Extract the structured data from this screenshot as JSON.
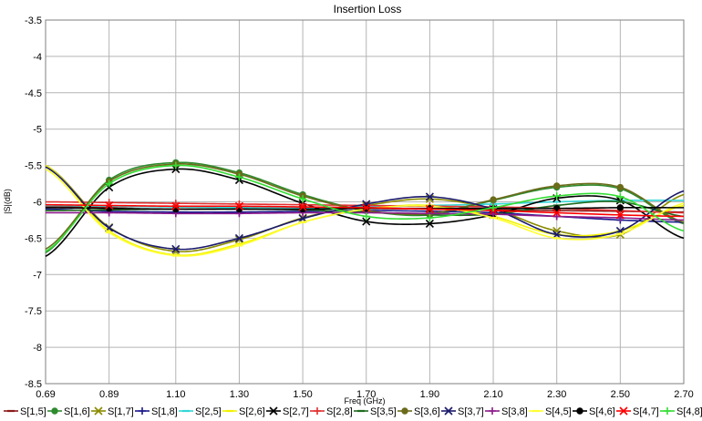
{
  "chart_data": {
    "type": "line",
    "title": "Insertion Loss",
    "xlabel": "Freq (GHz)",
    "ylabel": "|S|(dB)",
    "xlim": [
      0.69,
      2.7
    ],
    "ylim": [
      -8.5,
      -3.5
    ],
    "x_ticks": [
      0.69,
      0.89,
      1.1,
      1.3,
      1.5,
      1.7,
      1.9,
      2.1,
      2.3,
      2.5,
      2.7
    ],
    "x_tick_labels": [
      "0.69",
      "0.89",
      "1.10",
      "1.30",
      "1.50",
      "1.70",
      "1.90",
      "2.10",
      "2.30",
      "2.50",
      "2.70"
    ],
    "y_ticks": [
      -3.5,
      -4,
      -4.5,
      -5,
      -5.5,
      -6,
      -6.5,
      -7,
      -7.5,
      -8,
      -8.5
    ],
    "y_tick_labels": [
      "-3.5",
      "-4",
      "-4.5",
      "-5",
      "-5.5",
      "-6",
      "-6.5",
      "-7",
      "-7.5",
      "-8",
      "-8.5"
    ],
    "grid": true,
    "legend_position": "bottom",
    "x": [
      0.69,
      0.89,
      1.1,
      1.3,
      1.5,
      1.7,
      1.9,
      2.1,
      2.3,
      2.5,
      2.7
    ],
    "series": [
      {
        "name": "S[1,5]",
        "color": "#8b1a1a",
        "marker": "dash",
        "values": [
          -6.07,
          -6.07,
          -6.06,
          -6.07,
          -6.08,
          -6.09,
          -6.1,
          -6.11,
          -6.12,
          -6.13,
          -6.14
        ]
      },
      {
        "name": "S[1,6]",
        "color": "#2e8b2e",
        "marker": "dot",
        "values": [
          -6.7,
          -5.7,
          -5.46,
          -5.6,
          -5.9,
          -6.12,
          -6.18,
          -5.98,
          -5.8,
          -5.82,
          -6.3
        ]
      },
      {
        "name": "S[1,7]",
        "color": "#8b8b00",
        "marker": "x",
        "values": [
          -5.5,
          -6.35,
          -6.68,
          -6.52,
          -6.22,
          -6.05,
          -5.96,
          -6.1,
          -6.4,
          -6.45,
          -5.9
        ]
      },
      {
        "name": "S[1,8]",
        "color": "#1a1a8b",
        "marker": "plus",
        "values": [
          -6.1,
          -6.13,
          -6.14,
          -6.14,
          -6.13,
          -6.12,
          -6.13,
          -6.15,
          -6.2,
          -6.25,
          -6.28
        ]
      },
      {
        "name": "S[2,5]",
        "color": "#33d6d6",
        "marker": "dash",
        "values": [
          -6.05,
          -6.06,
          -6.07,
          -6.08,
          -6.08,
          -6.07,
          -6.05,
          -6.03,
          -6.0,
          -5.98,
          -5.98
        ]
      },
      {
        "name": "S[2,6]",
        "color": "#f2f200",
        "marker": "dash",
        "values": [
          -5.5,
          -6.4,
          -6.73,
          -6.58,
          -6.28,
          -6.1,
          -6.05,
          -6.2,
          -6.45,
          -6.4,
          -6.05
        ]
      },
      {
        "name": "S[2,7]",
        "color": "#000000",
        "marker": "x",
        "values": [
          -6.75,
          -5.8,
          -5.55,
          -5.7,
          -6.02,
          -6.27,
          -6.3,
          -6.18,
          -5.95,
          -5.98,
          -6.5
        ]
      },
      {
        "name": "S[2,8]",
        "color": "#e03030",
        "marker": "plus",
        "values": [
          -6.0,
          -6.01,
          -6.02,
          -6.03,
          -6.04,
          -6.05,
          -6.06,
          -6.07,
          -6.09,
          -6.12,
          -6.15
        ]
      },
      {
        "name": "S[3,5]",
        "color": "#1f6b1f",
        "marker": "dash",
        "values": [
          -6.12,
          -6.11,
          -6.1,
          -6.1,
          -6.11,
          -6.14,
          -6.18,
          -6.17,
          -6.05,
          -6.0,
          -6.2
        ]
      },
      {
        "name": "S[3,6]",
        "color": "#6b6b1a",
        "marker": "dot",
        "values": [
          -6.65,
          -5.72,
          -5.48,
          -5.62,
          -5.92,
          -6.12,
          -6.16,
          -5.97,
          -5.78,
          -5.8,
          -6.28
        ]
      },
      {
        "name": "S[3,7]",
        "color": "#1a1a6b",
        "marker": "x",
        "values": [
          -5.52,
          -6.36,
          -6.65,
          -6.5,
          -6.23,
          -6.03,
          -5.93,
          -6.1,
          -6.45,
          -6.4,
          -5.85
        ]
      },
      {
        "name": "S[3,8]",
        "color": "#8b1a8b",
        "marker": "plus",
        "values": [
          -6.15,
          -6.15,
          -6.16,
          -6.16,
          -6.15,
          -6.15,
          -6.16,
          -6.17,
          -6.2,
          -6.22,
          -6.25
        ]
      },
      {
        "name": "S[4,5]",
        "color": "#ffff33",
        "marker": "dash",
        "values": [
          -5.55,
          -6.42,
          -6.74,
          -6.6,
          -6.28,
          -6.1,
          -6.06,
          -6.22,
          -6.5,
          -6.44,
          -6.02
        ]
      },
      {
        "name": "S[4,6]",
        "color": "#000000",
        "marker": "dot",
        "values": [
          -6.08,
          -6.09,
          -6.1,
          -6.1,
          -6.1,
          -6.09,
          -6.09,
          -6.09,
          -6.09,
          -6.08,
          -6.08
        ]
      },
      {
        "name": "S[4,7]",
        "color": "#ff0000",
        "marker": "x",
        "values": [
          -6.04,
          -6.05,
          -6.06,
          -6.06,
          -6.07,
          -6.08,
          -6.1,
          -6.12,
          -6.15,
          -6.18,
          -6.2
        ]
      },
      {
        "name": "S[4,8]",
        "color": "#33dd33",
        "marker": "plus",
        "values": [
          -6.68,
          -5.75,
          -5.5,
          -5.66,
          -5.96,
          -6.2,
          -6.22,
          -6.08,
          -5.92,
          -5.93,
          -6.4
        ]
      }
    ]
  }
}
